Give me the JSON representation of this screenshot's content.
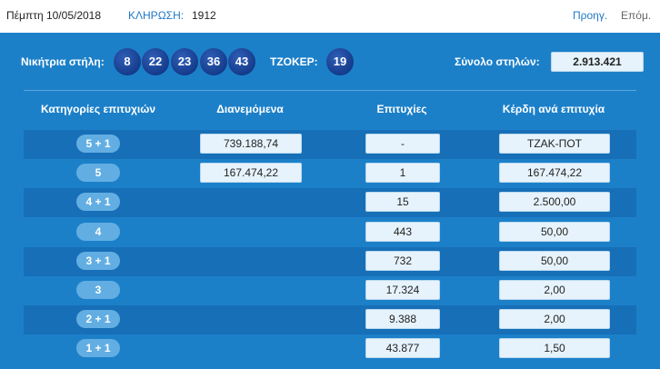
{
  "header": {
    "date": "Πέμπτη 10/05/2018",
    "draw_label": "ΚΛΗΡΩΣΗ:",
    "draw_number": "1912",
    "prev": "Προηγ.",
    "next": "Επόμ."
  },
  "summary": {
    "winning_label": "Νικήτρια στήλη:",
    "numbers": [
      "8",
      "22",
      "23",
      "36",
      "43"
    ],
    "joker_label": "ΤΖΟΚΕΡ:",
    "joker": "19",
    "columns_label": "Σύνολο στηλών:",
    "columns": "2.913.421"
  },
  "table": {
    "headers": [
      "Κατηγορίες επιτυχιών",
      "Διανεμόμενα",
      "Επιτυχίες",
      "Κέρδη ανά επιτυχία"
    ],
    "rows": [
      [
        "5 + 1",
        "739.188,74",
        "-",
        "ΤΖΑΚ-ΠΟΤ"
      ],
      [
        "5",
        "167.474,22",
        "1",
        "167.474,22"
      ],
      [
        "4 + 1",
        null,
        "15",
        "2.500,00"
      ],
      [
        "4",
        null,
        "443",
        "50,00"
      ],
      [
        "3 + 1",
        null,
        "732",
        "50,00"
      ],
      [
        "3",
        null,
        "17.324",
        "2,00"
      ],
      [
        "2 + 1",
        null,
        "9.388",
        "2,00"
      ],
      [
        "1 + 1",
        null,
        "43.877",
        "1,50"
      ]
    ]
  }
}
